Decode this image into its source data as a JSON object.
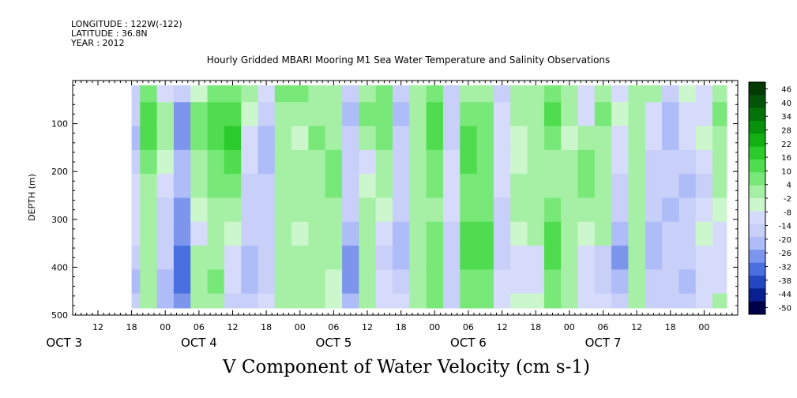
{
  "header": {
    "longitude": "LONGITUDE : 122W(-122)",
    "latitude": "LATITUDE : 36.8N",
    "year": "YEAR : 2012",
    "title": "Hourly Gridded MBARI Mooring M1 Sea Water Temperature and Salinity Observations"
  },
  "chart_data": {
    "type": "heatmap",
    "title": "Hourly Gridded MBARI Mooring M1 Sea Water Temperature and Salinity Observations",
    "xlabel": "V Component of Water Velocity (cm s-1)",
    "ylabel": "DEPTH (m)",
    "x_axis": {
      "unit": "hours since OCT 3 00:00",
      "range": [
        7.5,
        126
      ],
      "data_range": [
        18,
        124
      ],
      "tick_hours": [
        12,
        18,
        24,
        30,
        36,
        42,
        48,
        54,
        60,
        66,
        72,
        78,
        84,
        90,
        96,
        102,
        108,
        114,
        120
      ],
      "tick_labels": [
        "12",
        "18",
        "00",
        "06",
        "12",
        "18",
        "00",
        "06",
        "12",
        "18",
        "00",
        "06",
        "12",
        "18",
        "00",
        "06",
        "12",
        "18",
        "00"
      ],
      "day_labels": [
        {
          "label": "OCT  3",
          "hour": 6
        },
        {
          "label": "OCT  4",
          "hour": 30
        },
        {
          "label": "OCT  5",
          "hour": 54
        },
        {
          "label": "OCT  6",
          "hour": 78
        },
        {
          "label": "OCT  7",
          "hour": 102
        }
      ]
    },
    "y_axis": {
      "range": [
        500,
        10
      ],
      "data_range": [
        20,
        485
      ],
      "inverted": true,
      "ticks": [
        100,
        200,
        300,
        400,
        500
      ],
      "tick_labels": [
        "100",
        "200",
        "300",
        "400",
        "500"
      ]
    },
    "colorbar": {
      "labels": [
        "46",
        "40",
        "34",
        "28",
        "22",
        "16",
        "10",
        "4",
        "-2",
        "-8",
        "-14",
        "-20",
        "-26",
        "-32",
        "-38",
        "-44",
        "-50"
      ],
      "min": -50,
      "max": 50,
      "colors": [
        "#00004a",
        "#0a1f8f",
        "#2447c2",
        "#4a6fe0",
        "#7d95ec",
        "#aebcf7",
        "#c8cff9",
        "#d6dbfb",
        "#ccf6cc",
        "#a5f0a5",
        "#78e878",
        "#4fdc4f",
        "#2ccb2c",
        "#12b012",
        "#08920b",
        "#06720a",
        "#045408",
        "#033a05"
      ]
    },
    "columns": [
      {
        "hour": 18,
        "values": [
          -14,
          -14,
          -20,
          -14,
          -8,
          -8,
          -8,
          -14,
          -20,
          -14
        ]
      },
      {
        "hour": 21,
        "values": [
          10,
          16,
          16,
          10,
          4,
          4,
          4,
          4,
          4,
          4
        ]
      },
      {
        "hour": 24,
        "values": [
          -8,
          4,
          4,
          -2,
          -8,
          -14,
          -14,
          -14,
          -20,
          -20
        ]
      },
      {
        "hour": 27,
        "values": [
          -14,
          -26,
          -26,
          -20,
          -20,
          -26,
          -26,
          -32,
          -32,
          -26
        ]
      },
      {
        "hour": 30,
        "values": [
          -2,
          10,
          10,
          4,
          4,
          -2,
          -8,
          4,
          4,
          4
        ]
      },
      {
        "hour": 33,
        "values": [
          10,
          16,
          16,
          10,
          10,
          4,
          4,
          4,
          10,
          4
        ]
      },
      {
        "hour": 36,
        "values": [
          10,
          16,
          22,
          16,
          10,
          4,
          -2,
          -8,
          -8,
          -14
        ]
      },
      {
        "hour": 39,
        "values": [
          4,
          -2,
          -8,
          -8,
          -14,
          -14,
          -14,
          -20,
          -20,
          -14
        ]
      },
      {
        "hour": 42,
        "values": [
          -8,
          -14,
          -20,
          -20,
          -14,
          -14,
          -14,
          -14,
          -14,
          -8
        ]
      },
      {
        "hour": 45,
        "values": [
          10,
          4,
          4,
          4,
          4,
          4,
          4,
          4,
          4,
          4
        ]
      },
      {
        "hour": 48,
        "values": [
          10,
          4,
          -2,
          4,
          4,
          4,
          -2,
          4,
          4,
          4
        ]
      },
      {
        "hour": 51,
        "values": [
          4,
          4,
          10,
          4,
          4,
          4,
          4,
          4,
          4,
          4
        ]
      },
      {
        "hour": 54,
        "values": [
          4,
          4,
          4,
          10,
          10,
          4,
          4,
          4,
          -2,
          -2
        ]
      },
      {
        "hour": 57,
        "values": [
          -14,
          -20,
          -14,
          -14,
          -14,
          -14,
          -20,
          -26,
          -26,
          -20
        ]
      },
      {
        "hour": 60,
        "values": [
          4,
          10,
          4,
          -8,
          -2,
          4,
          4,
          4,
          4,
          4
        ]
      },
      {
        "hour": 63,
        "values": [
          10,
          10,
          10,
          4,
          4,
          -2,
          -8,
          -14,
          -8,
          -8
        ]
      },
      {
        "hour": 66,
        "values": [
          -14,
          -20,
          -14,
          -14,
          -14,
          -14,
          -20,
          -20,
          -14,
          -8
        ]
      },
      {
        "hour": 69,
        "values": [
          4,
          4,
          4,
          4,
          4,
          4,
          4,
          4,
          4,
          4
        ]
      },
      {
        "hour": 72,
        "values": [
          10,
          16,
          16,
          10,
          10,
          4,
          10,
          10,
          10,
          10
        ]
      },
      {
        "hour": 75,
        "values": [
          -14,
          -14,
          -14,
          -8,
          -8,
          -8,
          -14,
          -14,
          -14,
          -14
        ]
      },
      {
        "hour": 78,
        "values": [
          4,
          10,
          16,
          16,
          10,
          10,
          16,
          16,
          10,
          10
        ]
      },
      {
        "hour": 81,
        "values": [
          4,
          10,
          10,
          10,
          10,
          10,
          16,
          16,
          10,
          10
        ]
      },
      {
        "hour": 84,
        "values": [
          -14,
          -8,
          -8,
          -8,
          -8,
          -14,
          -14,
          -14,
          -8,
          -8
        ]
      },
      {
        "hour": 87,
        "values": [
          4,
          4,
          -2,
          -2,
          4,
          4,
          -2,
          -8,
          -8,
          -2
        ]
      },
      {
        "hour": 90,
        "values": [
          4,
          4,
          4,
          4,
          4,
          4,
          4,
          -8,
          -8,
          -2
        ]
      },
      {
        "hour": 93,
        "values": [
          10,
          16,
          10,
          4,
          4,
          10,
          16,
          16,
          10,
          10
        ]
      },
      {
        "hour": 96,
        "values": [
          4,
          4,
          -2,
          4,
          4,
          4,
          4,
          4,
          4,
          4
        ]
      },
      {
        "hour": 99,
        "values": [
          -8,
          -8,
          4,
          10,
          10,
          4,
          -2,
          -8,
          -8,
          -8
        ]
      },
      {
        "hour": 102,
        "values": [
          4,
          10,
          4,
          4,
          4,
          4,
          4,
          -14,
          -14,
          -8
        ]
      },
      {
        "hour": 105,
        "values": [
          -8,
          -2,
          -8,
          -8,
          -14,
          -14,
          -20,
          -26,
          -20,
          -14
        ]
      },
      {
        "hour": 108,
        "values": [
          4,
          4,
          4,
          4,
          4,
          4,
          4,
          4,
          4,
          4
        ]
      },
      {
        "hour": 111,
        "values": [
          4,
          -8,
          -8,
          -14,
          -14,
          -14,
          -20,
          -20,
          -14,
          -14
        ]
      },
      {
        "hour": 114,
        "values": [
          -14,
          -20,
          -20,
          -14,
          -14,
          -20,
          -14,
          -14,
          -14,
          -14
        ]
      },
      {
        "hour": 117,
        "values": [
          -2,
          -8,
          -8,
          -14,
          -20,
          -14,
          -14,
          -14,
          -20,
          -14
        ]
      },
      {
        "hour": 120,
        "values": [
          -8,
          -8,
          -2,
          -8,
          -14,
          -8,
          -2,
          -8,
          -8,
          -8
        ]
      },
      {
        "hour": 123,
        "values": [
          4,
          10,
          4,
          4,
          4,
          -2,
          -8,
          -8,
          -8,
          4
        ]
      }
    ],
    "depths": [
      30,
      80,
      130,
      180,
      230,
      280,
      330,
      380,
      430,
      480
    ]
  }
}
